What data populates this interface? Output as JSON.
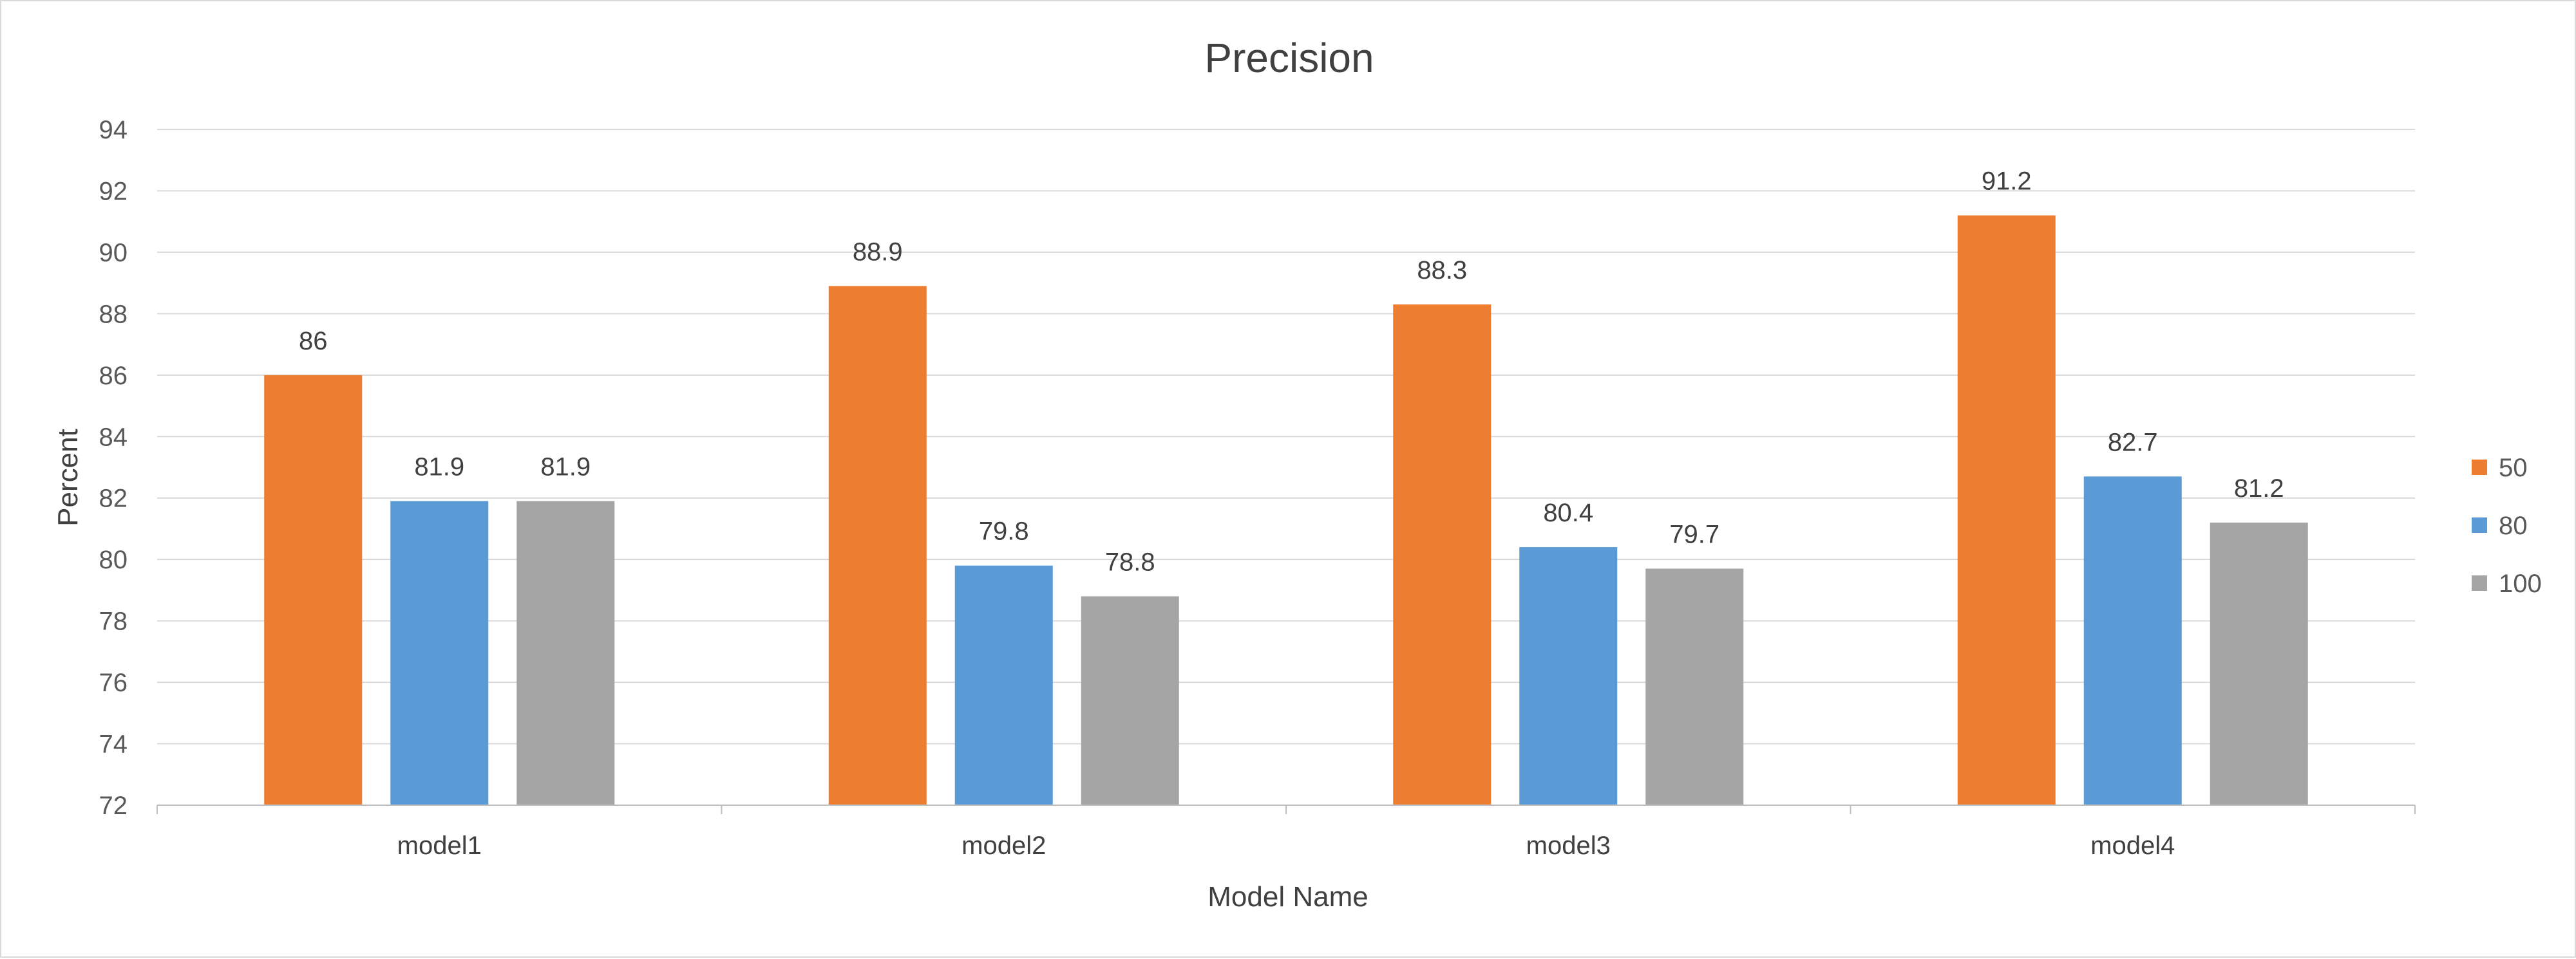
{
  "chart_data": {
    "type": "bar",
    "title": "Precision",
    "xlabel": "Model Name",
    "ylabel": "Percent",
    "categories": [
      "model1",
      "model2",
      "model3",
      "model4"
    ],
    "series": [
      {
        "name": "50",
        "values": [
          86,
          88.9,
          88.3,
          91.2
        ],
        "color": "#ED7D31"
      },
      {
        "name": "80",
        "values": [
          81.9,
          79.8,
          80.4,
          82.7
        ],
        "color": "#5B9BD5"
      },
      {
        "name": "100",
        "values": [
          81.9,
          78.8,
          79.7,
          81.2
        ],
        "color": "#A5A5A5"
      }
    ],
    "ylim": [
      72,
      94
    ],
    "yticks": [
      "72",
      "74",
      "76",
      "78",
      "80",
      "82",
      "84",
      "86",
      "88",
      "90",
      "92",
      "94"
    ],
    "data_labels": true,
    "grid": true,
    "legend": "right"
  }
}
